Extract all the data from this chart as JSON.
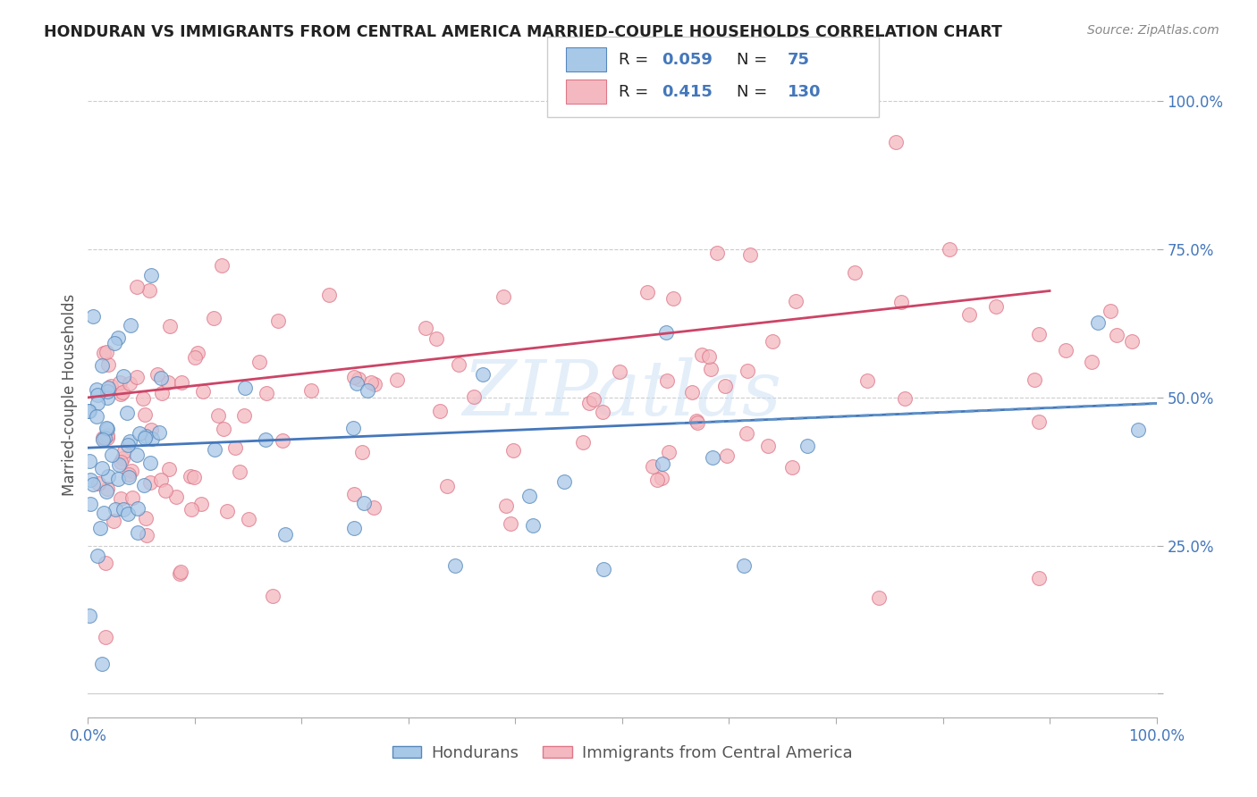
{
  "title": "HONDURAN VS IMMIGRANTS FROM CENTRAL AMERICA MARRIED-COUPLE HOUSEHOLDS CORRELATION CHART",
  "source": "Source: ZipAtlas.com",
  "ylabel": "Married-couple Households",
  "xmin": 0.0,
  "xmax": 1.0,
  "ymin": 0.0,
  "ymax": 1.0,
  "blue_color": "#a8c8e8",
  "pink_color": "#f4b8c0",
  "blue_edge_color": "#5588bb",
  "pink_edge_color": "#dd7788",
  "blue_line_color": "#4477bb",
  "pink_line_color": "#cc4466",
  "dashed_line_color": "#6699cc",
  "grid_color": "#cccccc",
  "tick_label_color": "#4477bb",
  "title_color": "#222222",
  "legend_text_color": "#222222",
  "watermark_color": "#c8dff5",
  "watermark": "ZIPatlas",
  "legend_r_blue": "0.059",
  "legend_n_blue": "75",
  "legend_r_pink": "0.415",
  "legend_n_pink": "130",
  "background_color": "#ffffff"
}
